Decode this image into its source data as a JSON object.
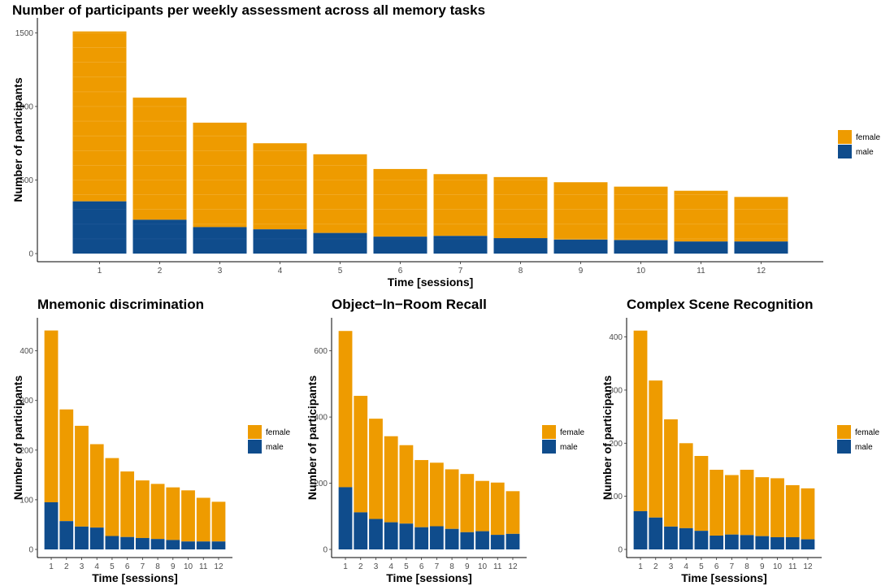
{
  "colors": {
    "female": "#EE9B00",
    "male": "#0F4C8C",
    "stripe": "#F5BF5A"
  },
  "chart_data": [
    {
      "type": "bar",
      "stacked": true,
      "title": "Number of participants per weekly assessment across all memory tasks",
      "xlabel": "Time [sessions]",
      "ylabel": "Number of participants",
      "categories": [
        "1",
        "2",
        "3",
        "4",
        "5",
        "6",
        "7",
        "8",
        "9",
        "10",
        "11",
        "12"
      ],
      "ylim": [
        0,
        1580
      ],
      "yticks": [
        0,
        500,
        1000,
        1500
      ],
      "legend": [
        "female",
        "male"
      ],
      "series": [
        {
          "name": "male",
          "values": [
            355,
            230,
            180,
            165,
            140,
            115,
            120,
            105,
            95,
            92,
            82,
            82
          ]
        },
        {
          "name": "female",
          "values": [
            1155,
            830,
            710,
            585,
            535,
            460,
            420,
            415,
            390,
            363,
            345,
            303
          ]
        }
      ]
    },
    {
      "type": "bar",
      "stacked": true,
      "title": "Mnemonic discrimination",
      "xlabel": "Time [sessions]",
      "ylabel": "Number of participants",
      "categories": [
        "1",
        "2",
        "3",
        "4",
        "5",
        "6",
        "7",
        "8",
        "9",
        "10",
        "11",
        "12"
      ],
      "ylim": [
        0,
        460
      ],
      "yticks": [
        0,
        100,
        200,
        300,
        400
      ],
      "legend": [
        "female",
        "male"
      ],
      "series": [
        {
          "name": "male",
          "values": [
            95,
            57,
            46,
            44,
            27,
            25,
            23,
            21,
            19,
            16,
            16,
            16
          ]
        },
        {
          "name": "female",
          "values": [
            346,
            225,
            203,
            168,
            157,
            132,
            116,
            111,
            106,
            103,
            88,
            80
          ]
        }
      ]
    },
    {
      "type": "bar",
      "stacked": true,
      "title": "Object−In−Room Recall",
      "xlabel": "Time [sessions]",
      "ylabel": "Number of participants",
      "categories": [
        "1",
        "2",
        "3",
        "4",
        "5",
        "6",
        "7",
        "8",
        "9",
        "10",
        "11",
        "12"
      ],
      "ylim": [
        0,
        690
      ],
      "yticks": [
        0,
        200,
        400,
        600
      ],
      "legend": [
        "female",
        "male"
      ],
      "series": [
        {
          "name": "male",
          "values": [
            188,
            112,
            92,
            82,
            78,
            67,
            70,
            62,
            52,
            55,
            44,
            47
          ]
        },
        {
          "name": "female",
          "values": [
            472,
            352,
            303,
            260,
            237,
            203,
            192,
            180,
            176,
            152,
            158,
            129
          ]
        }
      ]
    },
    {
      "type": "bar",
      "stacked": true,
      "title": "Complex Scene Recognition",
      "xlabel": "Time [sessions]",
      "ylabel": "Number of participants",
      "categories": [
        "1",
        "2",
        "3",
        "4",
        "5",
        "6",
        "7",
        "8",
        "9",
        "10",
        "11",
        "12"
      ],
      "ylim": [
        0,
        430
      ],
      "yticks": [
        0,
        100,
        200,
        300,
        400
      ],
      "legend": [
        "female",
        "male"
      ],
      "series": [
        {
          "name": "male",
          "values": [
            72,
            60,
            43,
            40,
            35,
            26,
            28,
            27,
            25,
            23,
            23,
            19
          ]
        },
        {
          "name": "female",
          "values": [
            340,
            258,
            202,
            160,
            141,
            124,
            112,
            123,
            111,
            111,
            98,
            96
          ]
        }
      ]
    }
  ]
}
